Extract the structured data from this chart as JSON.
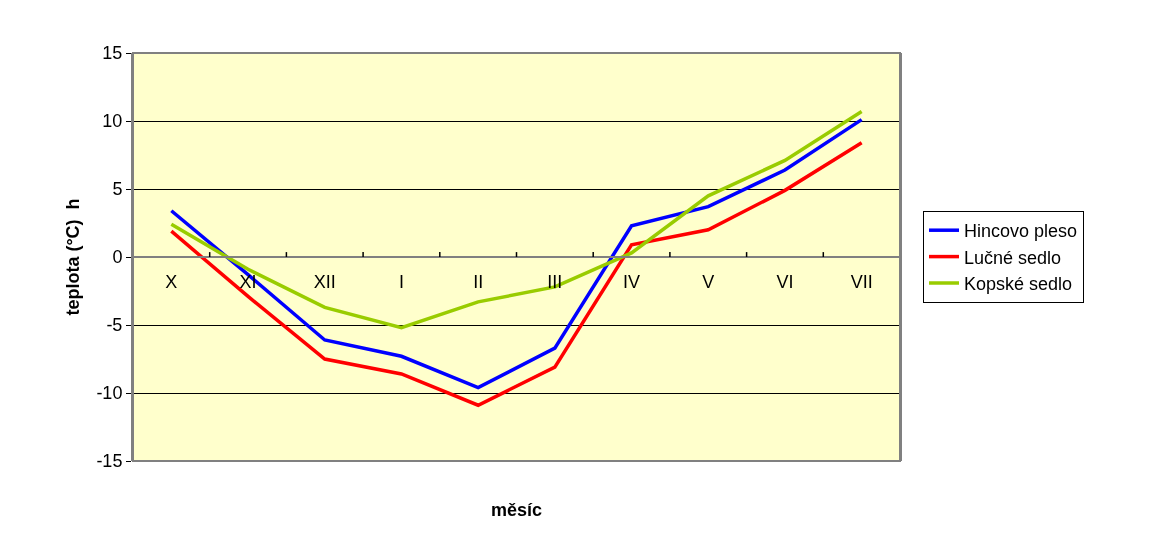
{
  "chart_data": {
    "type": "line",
    "xlabel": "měsíc",
    "ylabel": "teplota (°C)  h",
    "categories": [
      "X",
      "XI",
      "XII",
      "I",
      "II",
      "III",
      "IV",
      "V",
      "VI",
      "VII"
    ],
    "series": [
      {
        "name": "Hincovo pleso",
        "color": "#0000ff",
        "values": [
          3.4,
          -1.3,
          -6.1,
          -7.3,
          -9.6,
          -6.7,
          2.3,
          3.7,
          6.4,
          10.1
        ]
      },
      {
        "name": "Lučné sedlo",
        "color": "#ff0000",
        "values": [
          1.9,
          -2.9,
          -7.5,
          -8.6,
          -10.9,
          -8.1,
          0.9,
          2.0,
          4.9,
          8.4
        ]
      },
      {
        "name": "Kopské sedlo",
        "color": "#99cc00",
        "values": [
          2.4,
          -0.9,
          -3.7,
          -5.2,
          -3.3,
          -2.2,
          0.3,
          4.5,
          7.1,
          10.7
        ]
      }
    ],
    "ylim": [
      -15,
      15
    ],
    "yticks": [
      -15,
      -10,
      -5,
      0,
      5,
      10,
      15
    ],
    "grid": "y",
    "legend": "right",
    "marker": "none",
    "line_style": "solid"
  }
}
